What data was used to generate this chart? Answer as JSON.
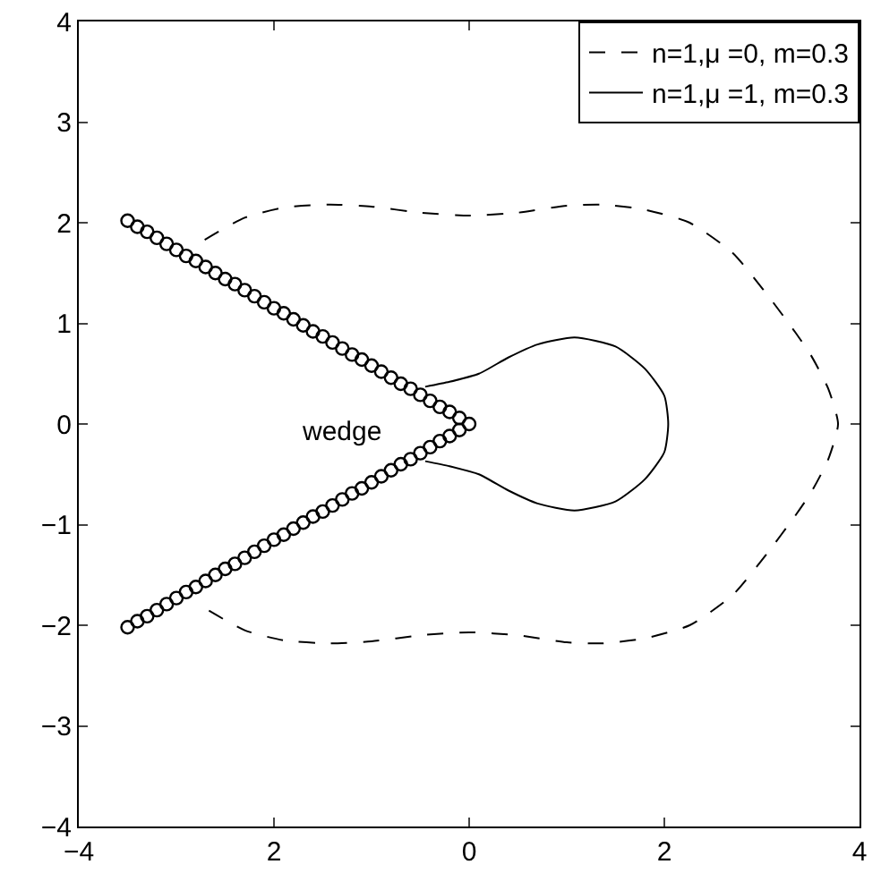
{
  "chart_data": {
    "type": "line",
    "xlim": [
      -4,
      4
    ],
    "ylim": [
      -4,
      4
    ],
    "xticks": [
      -4,
      {
        "value": -2,
        "label": "2"
      },
      0,
      2,
      4
    ],
    "yticks": [
      -4,
      -3,
      -2,
      -1,
      0,
      1,
      2,
      3,
      4
    ],
    "grid": false,
    "legend": "top right",
    "annotations": [
      "wedge"
    ],
    "series": [
      {
        "name": "n=1,μ =0, m=0.3",
        "color": "#000000",
        "line_style": "dashed",
        "marker": "none",
        "x": [
          -2.71,
          -2.3,
          -1.9,
          -1.43,
          -1.0,
          -0.5,
          0,
          0.5,
          1.0,
          1.36,
          1.8,
          2.26,
          2.7,
          3.05,
          3.35,
          3.51,
          3.68,
          3.78,
          3.68,
          3.51,
          3.35,
          3.05,
          2.7,
          2.26,
          1.8,
          1.36,
          1.0,
          0.5,
          0,
          -0.5,
          -1.0,
          -1.43,
          -1.9,
          -2.3,
          -2.71
        ],
        "values": [
          1.83,
          2.05,
          2.15,
          2.18,
          2.16,
          2.1,
          2.07,
          2.1,
          2.17,
          2.18,
          2.13,
          2.0,
          1.7,
          1.29,
          0.9,
          0.67,
          0.35,
          0,
          -0.35,
          -0.67,
          -0.9,
          -1.29,
          -1.7,
          -2.0,
          -2.13,
          -2.18,
          -2.17,
          -2.1,
          -2.07,
          -2.1,
          -2.16,
          -2.18,
          -2.15,
          -2.05,
          -1.83
        ]
      },
      {
        "name": "n=1,μ =1, m=0.3",
        "color": "#000000",
        "line_style": "solid",
        "marker": "none",
        "x": [
          -0.45,
          -0.2,
          0.1,
          0.4,
          0.7,
          1.08,
          1.5,
          1.8,
          2.0,
          2.04,
          2.0,
          1.8,
          1.5,
          1.08,
          0.7,
          0.4,
          0.1,
          -0.2,
          -0.45
        ],
        "values": [
          0.37,
          0.42,
          0.5,
          0.66,
          0.79,
          0.86,
          0.77,
          0.55,
          0.28,
          0,
          -0.28,
          -0.55,
          -0.77,
          -0.86,
          -0.79,
          -0.66,
          -0.5,
          -0.42,
          -0.37
        ]
      },
      {
        "type": "scatter",
        "color": "#000000",
        "marker": "circle",
        "x": [
          -3.5,
          -3.4,
          -3.3,
          -3.2,
          -3.1,
          -3.0,
          -2.9,
          -2.8,
          -2.7,
          -2.6,
          -2.5,
          -2.4,
          -2.3,
          -2.2,
          -2.1,
          -2.0,
          -1.9,
          -1.8,
          -1.7,
          -1.6,
          -1.5,
          -1.4,
          -1.3,
          -1.2,
          -1.1,
          -1.0,
          -0.9,
          -0.8,
          -0.7,
          -0.6,
          -0.5,
          -0.4,
          -0.3,
          -0.2,
          -0.1,
          0
        ],
        "values": [
          2.02,
          1.96,
          1.91,
          1.85,
          1.79,
          1.73,
          1.67,
          1.62,
          1.56,
          1.5,
          1.44,
          1.39,
          1.33,
          1.27,
          1.21,
          1.15,
          1.1,
          1.04,
          0.98,
          0.92,
          0.87,
          0.81,
          0.75,
          0.69,
          0.64,
          0.58,
          0.52,
          0.46,
          0.4,
          0.35,
          0.29,
          0.23,
          0.17,
          0.12,
          0.06,
          0
        ]
      },
      {
        "type": "scatter",
        "color": "#000000",
        "marker": "circle",
        "x": [
          -3.5,
          -3.4,
          -3.3,
          -3.2,
          -3.1,
          -3.0,
          -2.9,
          -2.8,
          -2.7,
          -2.6,
          -2.5,
          -2.4,
          -2.3,
          -2.2,
          -2.1,
          -2.0,
          -1.9,
          -1.8,
          -1.7,
          -1.6,
          -1.5,
          -1.4,
          -1.3,
          -1.2,
          -1.1,
          -1.0,
          -0.9,
          -0.8,
          -0.7,
          -0.6,
          -0.5,
          -0.4,
          -0.3,
          -0.2,
          -0.1
        ],
        "values": [
          -2.02,
          -1.96,
          -1.91,
          -1.85,
          -1.79,
          -1.73,
          -1.67,
          -1.62,
          -1.56,
          -1.5,
          -1.44,
          -1.39,
          -1.33,
          -1.27,
          -1.21,
          -1.15,
          -1.1,
          -1.04,
          -0.98,
          -0.92,
          -0.87,
          -0.81,
          -0.75,
          -0.69,
          -0.64,
          -0.58,
          -0.52,
          -0.46,
          -0.4,
          -0.35,
          -0.29,
          -0.23,
          -0.17,
          -0.12,
          -0.06
        ]
      }
    ]
  }
}
